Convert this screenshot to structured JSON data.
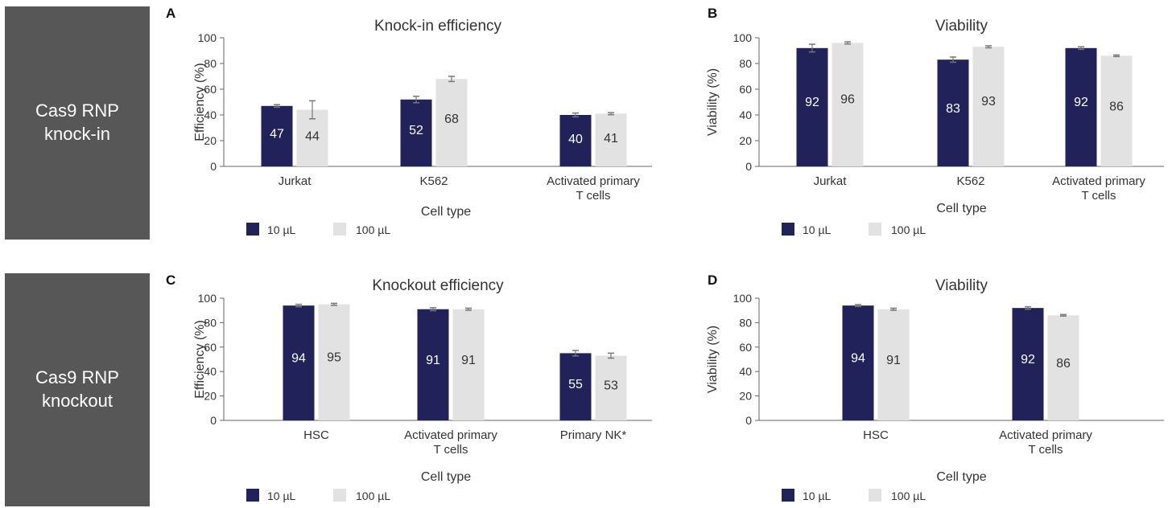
{
  "side_labels": [
    {
      "id": "knock-in",
      "text": "Cas9 RNP\nknock-in"
    },
    {
      "id": "knockout",
      "text": "Cas9 RNP\nknockout"
    }
  ],
  "colors": {
    "series_10": "#22225a",
    "series_100": "#e2e2e2",
    "label_dark": "#ffffff",
    "label_light": "#333333",
    "axis": "#666666",
    "error": "#777777"
  },
  "chart_data": [
    {
      "panel": "A",
      "type": "bar",
      "title": "Knock-in efficiency",
      "xlabel": "Cell type",
      "ylabel": "Efficiency (%)",
      "ylim": [
        0,
        100
      ],
      "yticks": [
        0,
        20,
        40,
        60,
        80,
        100
      ],
      "categories": [
        [
          "Jurkat"
        ],
        [
          "K562"
        ],
        [
          "Activated primary",
          "T cells"
        ]
      ],
      "series": [
        {
          "name": "10 µL",
          "values": [
            47,
            52,
            40
          ],
          "errors": [
            1,
            2.5,
            1.5
          ]
        },
        {
          "name": "100 µL",
          "values": [
            44,
            68,
            41
          ],
          "errors": [
            7,
            2,
            0.8
          ]
        }
      ],
      "legend": "bottom-left"
    },
    {
      "panel": "B",
      "type": "bar",
      "title": "Viability",
      "xlabel": "Cell type",
      "ylabel": "Viability (%)",
      "ylim": [
        0,
        100
      ],
      "yticks": [
        0,
        20,
        40,
        60,
        80,
        100
      ],
      "categories": [
        [
          "Jurkat"
        ],
        [
          "K562"
        ],
        [
          "Activated primary",
          "T cells"
        ]
      ],
      "series": [
        {
          "name": "10 µL",
          "values": [
            92,
            83,
            92
          ],
          "errors": [
            3,
            2,
            1
          ]
        },
        {
          "name": "100 µL",
          "values": [
            96,
            93,
            86
          ],
          "errors": [
            0.8,
            0.8,
            0.6
          ]
        }
      ],
      "legend": "bottom-left"
    },
    {
      "panel": "C",
      "type": "bar",
      "title": "Knockout efficiency",
      "xlabel": "Cell type",
      "ylabel": "Efficiency (%)",
      "ylim": [
        0,
        100
      ],
      "yticks": [
        0,
        20,
        40,
        60,
        80,
        100
      ],
      "categories": [
        [
          "HSC"
        ],
        [
          "Activated primary",
          "T cells"
        ],
        [
          "Primary NK*"
        ]
      ],
      "series": [
        {
          "name": "10 µL",
          "values": [
            94,
            91,
            55
          ],
          "errors": [
            1,
            1.2,
            2.2
          ]
        },
        {
          "name": "100 µL",
          "values": [
            95,
            91,
            53
          ],
          "errors": [
            0.8,
            0.8,
            2
          ]
        }
      ],
      "legend": "bottom-left"
    },
    {
      "panel": "D",
      "type": "bar",
      "title": "Viability",
      "xlabel": "Cell type",
      "ylabel": "Viability (%)",
      "ylim": [
        0,
        100
      ],
      "yticks": [
        0,
        20,
        40,
        60,
        80,
        100
      ],
      "categories": [
        [
          "HSC"
        ],
        [
          "Activated primary",
          "T cells"
        ]
      ],
      "series": [
        {
          "name": "10 µL",
          "values": [
            94,
            92
          ],
          "errors": [
            0.8,
            1
          ]
        },
        {
          "name": "100 µL",
          "values": [
            91,
            86
          ],
          "errors": [
            0.8,
            0.6
          ]
        }
      ],
      "legend": "bottom-left"
    }
  ]
}
